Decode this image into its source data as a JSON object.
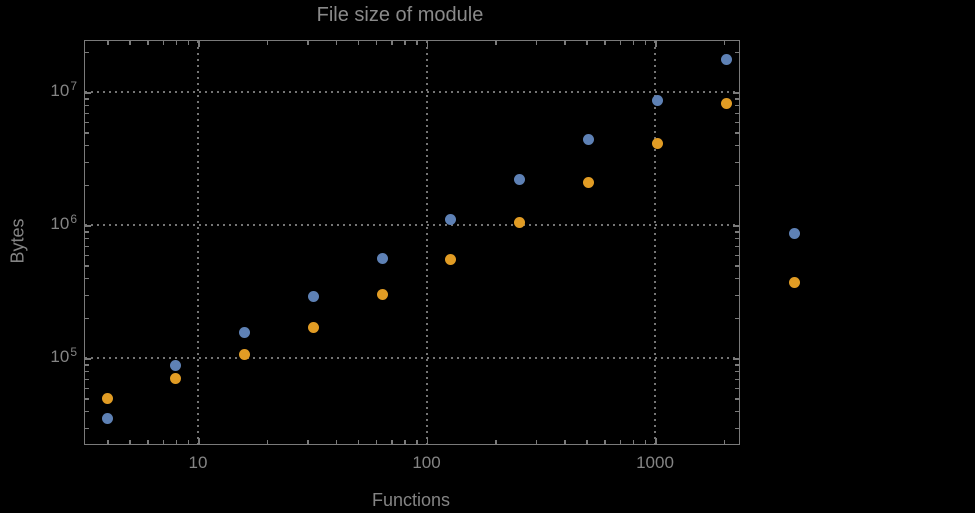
{
  "page": {
    "background_color": "#000000"
  },
  "chart": {
    "title": "File size of module",
    "x_axis_label": "Functions",
    "y_axis_label": "Bytes",
    "text_color": "#8a8a8a",
    "tick_label_color": "#848484",
    "frame_color": "#7a7a7a",
    "grid_color": "#747474",
    "x_tick_labels": [
      {
        "value": 10,
        "label": "10"
      },
      {
        "value": 100,
        "label": "100"
      },
      {
        "value": 1000,
        "label": "1000"
      }
    ],
    "y_tick_labels": [
      {
        "value": 100000,
        "base": "10",
        "exp": "5"
      },
      {
        "value": 1000000,
        "base": "10",
        "exp": "6"
      },
      {
        "value": 10000000,
        "base": "10",
        "exp": "7"
      }
    ]
  },
  "chart_data": {
    "type": "scatter",
    "title": "File size of module",
    "xlabel": "Functions",
    "ylabel": "Bytes",
    "x_scale": "log",
    "y_scale": "log",
    "xlim": [
      3.2,
      2300
    ],
    "ylim": [
      22500,
      24500000
    ],
    "grid": "dotted lines at decades (10, 100, 1000 on x; 1e5, 1e6, 1e7 on y)",
    "legend": "none",
    "x_gridlines": [
      10,
      100,
      1000
    ],
    "y_gridlines": [
      100000,
      1000000,
      10000000
    ],
    "series": [
      {
        "name": "blue-series",
        "color": "#5e81b5",
        "points": [
          [
            4,
            35000
          ],
          [
            8,
            88000
          ],
          [
            16,
            155000
          ],
          [
            32,
            290000
          ],
          [
            64,
            560000
          ],
          [
            128,
            1100000
          ],
          [
            256,
            2200000
          ],
          [
            512,
            4400000
          ],
          [
            1024,
            8700000
          ],
          [
            2048,
            17500000
          ],
          [
            4096,
            860000
          ]
        ]
      },
      {
        "name": "orange-series",
        "color": "#e19c24",
        "points": [
          [
            4,
            50000
          ],
          [
            8,
            70000
          ],
          [
            16,
            107000
          ],
          [
            32,
            170000
          ],
          [
            64,
            300000
          ],
          [
            128,
            550000
          ],
          [
            256,
            1050000
          ],
          [
            512,
            2100000
          ],
          [
            1024,
            4100000
          ],
          [
            2048,
            8200000
          ],
          [
            4096,
            370000
          ]
        ]
      }
    ]
  }
}
